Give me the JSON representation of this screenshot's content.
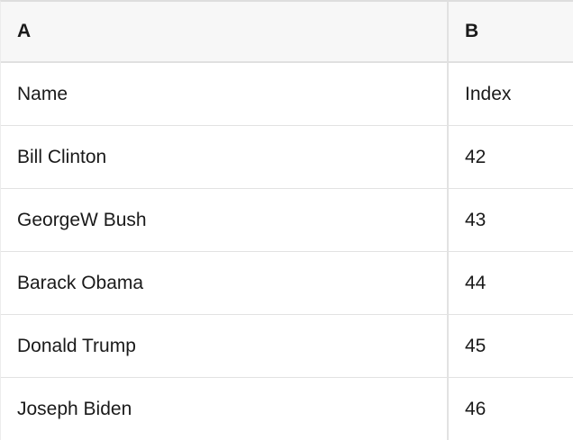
{
  "table": {
    "column_headers": [
      "A",
      "B"
    ],
    "rows": [
      {
        "a": "Name",
        "b": "Index"
      },
      {
        "a": "Bill Clinton",
        "b": "42"
      },
      {
        "a": "GeorgeW Bush",
        "b": "43"
      },
      {
        "a": "Barack Obama",
        "b": "44"
      },
      {
        "a": "Donald Trump",
        "b": "45"
      },
      {
        "a": "Joseph Biden",
        "b": "46"
      }
    ]
  },
  "colors": {
    "header_bg": "#f7f7f7",
    "border": "#e2e2e2",
    "header_border": "#e0e0e0",
    "top_border": "#dedede",
    "text": "#1a1a1a",
    "row_bg": "#ffffff"
  }
}
